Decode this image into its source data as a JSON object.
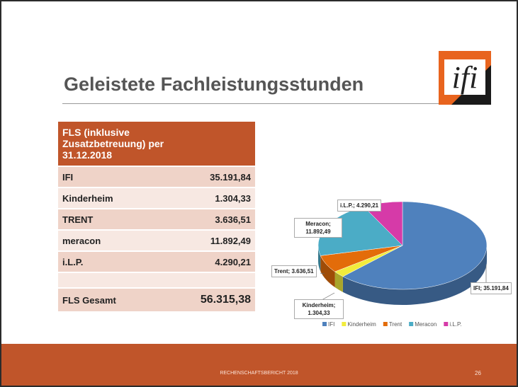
{
  "header": {
    "title": "Geleistete Fachleistungsstunden",
    "logo": "ifi"
  },
  "table": {
    "heading": "FLS (inklusive Zusatzbetreuung) per 31.12.2018",
    "rows": [
      [
        "IFI",
        "35.191,84"
      ],
      [
        "Kinderheim",
        "1.304,33"
      ],
      [
        "TRENT",
        "3.636,51"
      ],
      [
        "meracon",
        "11.892,49"
      ],
      [
        "i.L.P.",
        "4.290,21"
      ]
    ],
    "total": [
      "FLS Gesamt",
      "56.315,38"
    ]
  },
  "chart_data": {
    "type": "pie",
    "categories": [
      "IFI",
      "Kinderheim",
      "Trent",
      "Meracon",
      "i.L.P."
    ],
    "values": [
      35191.84,
      1304.33,
      3636.51,
      11892.49,
      4290.21
    ],
    "value_labels": [
      "IFI; 35.191,84",
      "Kinderheim; 1.304,33",
      "Trent; 3.636,51",
      "Meracon; 11.892,49",
      "i.L.P.; 4.290,21"
    ],
    "colors": [
      "#4f81bd",
      "#f2ec3c",
      "#e36c0a",
      "#4bacc6",
      "#d63aa8"
    ]
  },
  "footer": {
    "text": "RECHENSCHAFTSBERICHT 2018",
    "page": "26"
  }
}
